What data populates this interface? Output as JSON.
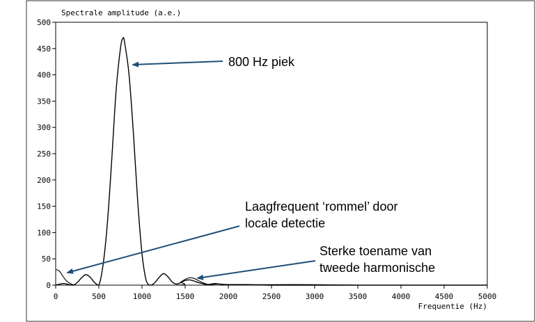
{
  "chart_data": {
    "type": "line",
    "ylabel": "Spectrale amplitude (a.e.)",
    "xlabel": "Frequentie (Hz)",
    "xlim": [
      0,
      5000
    ],
    "ylim": [
      0,
      500
    ],
    "x_ticks": [
      0,
      500,
      1000,
      1500,
      2000,
      2500,
      3000,
      3500,
      4000,
      4500,
      5000
    ],
    "y_ticks": [
      0,
      50,
      100,
      150,
      200,
      250,
      300,
      350,
      400,
      450,
      500
    ],
    "grid": false,
    "series": [
      {
        "x": [
          0,
          50,
          100,
          150,
          200,
          250,
          300,
          350,
          400,
          450,
          500,
          550,
          600,
          650,
          700,
          750,
          780,
          800,
          850,
          900,
          950,
          1000,
          1050,
          1100,
          1150,
          1200,
          1250,
          1300,
          1350,
          1400,
          1450,
          1500,
          1550,
          1600,
          1650,
          1700,
          1750,
          1800,
          1850,
          1900,
          2000,
          2200,
          2500,
          3000,
          3500,
          4000,
          4500,
          5000
        ],
        "y": [
          0,
          2,
          3,
          1,
          0,
          5,
          14,
          20,
          15,
          5,
          0,
          40,
          120,
          240,
          370,
          450,
          470,
          460,
          400,
          290,
          160,
          60,
          8,
          0,
          5,
          15,
          22,
          16,
          6,
          2,
          5,
          9,
          10,
          8,
          5,
          3,
          1,
          2,
          3,
          2,
          1,
          1,
          0,
          0,
          0,
          0,
          0,
          0
        ]
      },
      {
        "x": [
          0,
          40,
          80,
          120,
          160,
          200,
          240,
          300,
          1400,
          1450,
          1500,
          1550,
          1600,
          1650,
          1700,
          1750,
          1800,
          1850,
          1900,
          2000,
          2500,
          3000,
          3500,
          4000,
          4500,
          5000
        ],
        "y": [
          30,
          27,
          18,
          9,
          4,
          1,
          0,
          0,
          0,
          6,
          11,
          14,
          13,
          9,
          5,
          2,
          1,
          2,
          2,
          1,
          1,
          1,
          0,
          0,
          0,
          0
        ]
      }
    ],
    "annotations": [
      {
        "text": "800 Hz piek",
        "target": [
          820,
          418
        ]
      },
      {
        "text": "Laagfrequent ‘rommel’ door",
        "text2": "locale detectie",
        "target": [
          130,
          24
        ]
      },
      {
        "text": "Sterke toename van",
        "text2": "tweede harmonische",
        "target": [
          1580,
          13
        ]
      }
    ]
  }
}
